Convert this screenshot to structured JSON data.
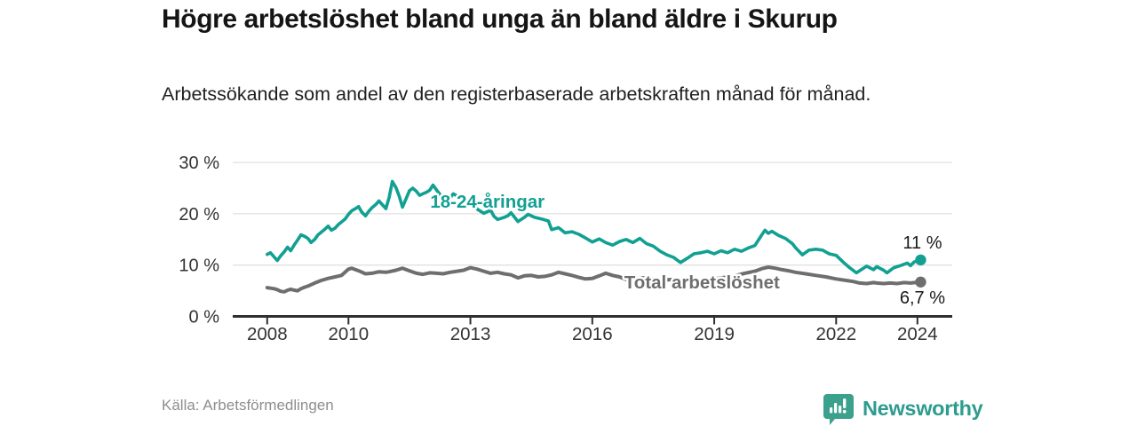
{
  "header": {
    "title": "Högre arbetslöshet bland unga än bland äldre i Skurup",
    "subtitle": "Arbetssökande som andel av den registerbaserade arbetskraften månad för månad."
  },
  "footer": {
    "source": "Källa: Arbetsförmedlingen",
    "brand": "Newsworthy"
  },
  "colors": {
    "young_line": "#11a092",
    "total_line": "#6e6e6e",
    "axis": "#2f2f2f",
    "grid": "#e0e0e0",
    "tick_label": "#333333",
    "value_label": "#1a1a1a",
    "brand_teal": "#2d9c8e",
    "brand_icon_bg": "#3ba18d"
  },
  "chart_data": {
    "type": "line",
    "title": "Högre arbetslöshet bland unga än bland äldre i Skurup",
    "subtitle": "Arbetssökande som andel av den registerbaserade arbetskraften månad för månad.",
    "unit": "%",
    "x_unit": "decimal year (monthly data)",
    "ylim": [
      0,
      30
    ],
    "grid": "horizontal",
    "legend": "inline-labels",
    "yticks": [
      {
        "value": 0,
        "label": "0 %"
      },
      {
        "value": 10,
        "label": "10 %"
      },
      {
        "value": 20,
        "label": "20 %"
      },
      {
        "value": 30,
        "label": "30 %"
      }
    ],
    "xticks": [
      {
        "value": 2008,
        "label": "2008"
      },
      {
        "value": 2010,
        "label": "2010"
      },
      {
        "value": 2013,
        "label": "2013"
      },
      {
        "value": 2016,
        "label": "2016"
      },
      {
        "value": 2019,
        "label": "2019"
      },
      {
        "value": 2022,
        "label": "2022"
      },
      {
        "value": 2024,
        "label": "2024"
      }
    ],
    "series": [
      {
        "name": "Total arbetslöshet",
        "color": "#6e6e6e",
        "width": 4,
        "inline_label": {
          "x": 2018.7,
          "y": 6.7
        },
        "end_label": {
          "text": "6,7 %",
          "dy": 24
        },
        "end_dot": true,
        "points": [
          [
            2008.0,
            5.6
          ],
          [
            2008.08,
            5.5
          ],
          [
            2008.17,
            5.4
          ],
          [
            2008.25,
            5.2
          ],
          [
            2008.33,
            4.9
          ],
          [
            2008.42,
            4.8
          ],
          [
            2008.5,
            5.1
          ],
          [
            2008.58,
            5.3
          ],
          [
            2008.67,
            5.1
          ],
          [
            2008.75,
            5.0
          ],
          [
            2008.83,
            5.4
          ],
          [
            2008.92,
            5.7
          ],
          [
            2009.0,
            5.9
          ],
          [
            2009.17,
            6.5
          ],
          [
            2009.33,
            7.0
          ],
          [
            2009.5,
            7.4
          ],
          [
            2009.67,
            7.7
          ],
          [
            2009.83,
            8.0
          ],
          [
            2010.0,
            9.2
          ],
          [
            2010.08,
            9.4
          ],
          [
            2010.25,
            8.9
          ],
          [
            2010.42,
            8.3
          ],
          [
            2010.58,
            8.4
          ],
          [
            2010.75,
            8.7
          ],
          [
            2010.92,
            8.6
          ],
          [
            2011.0,
            8.7
          ],
          [
            2011.17,
            9.0
          ],
          [
            2011.33,
            9.4
          ],
          [
            2011.5,
            8.9
          ],
          [
            2011.67,
            8.4
          ],
          [
            2011.83,
            8.2
          ],
          [
            2012.0,
            8.5
          ],
          [
            2012.17,
            8.4
          ],
          [
            2012.33,
            8.3
          ],
          [
            2012.5,
            8.6
          ],
          [
            2012.67,
            8.8
          ],
          [
            2012.83,
            9.0
          ],
          [
            2013.0,
            9.5
          ],
          [
            2013.17,
            9.2
          ],
          [
            2013.33,
            8.8
          ],
          [
            2013.5,
            8.4
          ],
          [
            2013.67,
            8.6
          ],
          [
            2013.83,
            8.3
          ],
          [
            2014.0,
            8.1
          ],
          [
            2014.17,
            7.5
          ],
          [
            2014.33,
            7.9
          ],
          [
            2014.5,
            8.0
          ],
          [
            2014.67,
            7.7
          ],
          [
            2014.83,
            7.8
          ],
          [
            2015.0,
            8.1
          ],
          [
            2015.17,
            8.6
          ],
          [
            2015.33,
            8.3
          ],
          [
            2015.5,
            8.0
          ],
          [
            2015.67,
            7.6
          ],
          [
            2015.83,
            7.3
          ],
          [
            2016.0,
            7.4
          ],
          [
            2016.17,
            7.9
          ],
          [
            2016.33,
            8.4
          ],
          [
            2016.5,
            8.0
          ],
          [
            2016.67,
            7.7
          ],
          [
            2016.83,
            7.2
          ],
          [
            2017.0,
            7.3
          ],
          [
            2017.25,
            7.5
          ],
          [
            2017.5,
            7.3
          ],
          [
            2017.75,
            7.1
          ],
          [
            2018.0,
            7.2
          ],
          [
            2018.25,
            7.0
          ],
          [
            2018.5,
            6.9
          ],
          [
            2018.75,
            7.1
          ],
          [
            2019.0,
            7.3
          ],
          [
            2019.25,
            7.6
          ],
          [
            2019.5,
            7.9
          ],
          [
            2019.75,
            8.4
          ],
          [
            2020.0,
            8.8
          ],
          [
            2020.17,
            9.3
          ],
          [
            2020.33,
            9.6
          ],
          [
            2020.5,
            9.4
          ],
          [
            2020.67,
            9.1
          ],
          [
            2020.83,
            8.9
          ],
          [
            2021.0,
            8.6
          ],
          [
            2021.25,
            8.3
          ],
          [
            2021.5,
            8.0
          ],
          [
            2021.75,
            7.7
          ],
          [
            2022.0,
            7.3
          ],
          [
            2022.25,
            7.0
          ],
          [
            2022.42,
            6.8
          ],
          [
            2022.58,
            6.5
          ],
          [
            2022.75,
            6.4
          ],
          [
            2022.92,
            6.6
          ],
          [
            2023.0,
            6.5
          ],
          [
            2023.17,
            6.4
          ],
          [
            2023.33,
            6.5
          ],
          [
            2023.5,
            6.4
          ],
          [
            2023.67,
            6.6
          ],
          [
            2023.83,
            6.5
          ],
          [
            2024.08,
            6.7
          ]
        ]
      },
      {
        "name": "18-24-åringar",
        "color": "#11a092",
        "width": 3.6,
        "inline_label": {
          "x": 2013.42,
          "y": 22.4
        },
        "end_label": {
          "text": "11 %",
          "dy": -13
        },
        "end_dot": true,
        "points": [
          [
            2008.0,
            12.1
          ],
          [
            2008.08,
            12.4
          ],
          [
            2008.17,
            11.6
          ],
          [
            2008.25,
            10.9
          ],
          [
            2008.33,
            11.8
          ],
          [
            2008.42,
            12.6
          ],
          [
            2008.5,
            13.5
          ],
          [
            2008.58,
            12.8
          ],
          [
            2008.67,
            14.0
          ],
          [
            2008.75,
            14.9
          ],
          [
            2008.83,
            15.9
          ],
          [
            2008.92,
            15.6
          ],
          [
            2009.0,
            15.2
          ],
          [
            2009.08,
            14.4
          ],
          [
            2009.17,
            15.0
          ],
          [
            2009.25,
            15.9
          ],
          [
            2009.33,
            16.4
          ],
          [
            2009.42,
            17.0
          ],
          [
            2009.5,
            17.6
          ],
          [
            2009.58,
            16.8
          ],
          [
            2009.67,
            17.2
          ],
          [
            2009.75,
            17.9
          ],
          [
            2009.83,
            18.4
          ],
          [
            2009.92,
            19.0
          ],
          [
            2010.0,
            19.9
          ],
          [
            2010.08,
            20.6
          ],
          [
            2010.17,
            21.0
          ],
          [
            2010.25,
            21.4
          ],
          [
            2010.33,
            20.3
          ],
          [
            2010.42,
            19.6
          ],
          [
            2010.5,
            20.5
          ],
          [
            2010.58,
            21.2
          ],
          [
            2010.67,
            21.8
          ],
          [
            2010.75,
            22.5
          ],
          [
            2010.83,
            21.8
          ],
          [
            2010.92,
            21.0
          ],
          [
            2011.0,
            23.2
          ],
          [
            2011.08,
            26.3
          ],
          [
            2011.17,
            25.1
          ],
          [
            2011.25,
            23.4
          ],
          [
            2011.33,
            21.3
          ],
          [
            2011.42,
            23.0
          ],
          [
            2011.5,
            24.5
          ],
          [
            2011.58,
            25.0
          ],
          [
            2011.67,
            24.4
          ],
          [
            2011.75,
            23.6
          ],
          [
            2011.83,
            23.9
          ],
          [
            2011.92,
            24.2
          ],
          [
            2012.0,
            24.6
          ],
          [
            2012.08,
            25.6
          ],
          [
            2012.17,
            24.6
          ],
          [
            2012.25,
            23.8
          ],
          [
            2012.33,
            22.1
          ],
          [
            2012.42,
            21.3
          ],
          [
            2012.5,
            23.1
          ],
          [
            2012.58,
            23.9
          ],
          [
            2012.67,
            23.5
          ],
          [
            2012.75,
            23.1
          ],
          [
            2012.83,
            23.3
          ],
          [
            2012.92,
            22.8
          ],
          [
            2013.0,
            22.2
          ],
          [
            2013.17,
            20.9
          ],
          [
            2013.33,
            20.1
          ],
          [
            2013.5,
            20.7
          ],
          [
            2013.58,
            19.5
          ],
          [
            2013.67,
            18.9
          ],
          [
            2013.83,
            19.3
          ],
          [
            2013.92,
            19.6
          ],
          [
            2014.0,
            20.2
          ],
          [
            2014.17,
            18.5
          ],
          [
            2014.33,
            19.3
          ],
          [
            2014.42,
            19.9
          ],
          [
            2014.58,
            19.3
          ],
          [
            2014.75,
            19.0
          ],
          [
            2014.92,
            18.6
          ],
          [
            2015.0,
            16.9
          ],
          [
            2015.17,
            17.3
          ],
          [
            2015.33,
            16.3
          ],
          [
            2015.5,
            16.5
          ],
          [
            2015.67,
            16.0
          ],
          [
            2015.83,
            15.3
          ],
          [
            2016.0,
            14.5
          ],
          [
            2016.17,
            15.1
          ],
          [
            2016.33,
            14.4
          ],
          [
            2016.5,
            13.9
          ],
          [
            2016.67,
            14.6
          ],
          [
            2016.83,
            15.0
          ],
          [
            2017.0,
            14.4
          ],
          [
            2017.17,
            15.2
          ],
          [
            2017.33,
            14.2
          ],
          [
            2017.5,
            13.7
          ],
          [
            2017.67,
            12.7
          ],
          [
            2017.83,
            12.0
          ],
          [
            2018.0,
            11.5
          ],
          [
            2018.17,
            10.5
          ],
          [
            2018.33,
            11.3
          ],
          [
            2018.5,
            12.2
          ],
          [
            2018.67,
            12.4
          ],
          [
            2018.83,
            12.7
          ],
          [
            2019.0,
            12.2
          ],
          [
            2019.17,
            12.8
          ],
          [
            2019.33,
            12.4
          ],
          [
            2019.5,
            13.1
          ],
          [
            2019.67,
            12.7
          ],
          [
            2019.83,
            13.3
          ],
          [
            2020.0,
            13.8
          ],
          [
            2020.17,
            15.9
          ],
          [
            2020.25,
            16.8
          ],
          [
            2020.33,
            16.2
          ],
          [
            2020.42,
            16.6
          ],
          [
            2020.58,
            15.8
          ],
          [
            2020.75,
            15.2
          ],
          [
            2020.92,
            14.2
          ],
          [
            2021.0,
            13.4
          ],
          [
            2021.17,
            12.0
          ],
          [
            2021.33,
            12.9
          ],
          [
            2021.5,
            13.1
          ],
          [
            2021.67,
            12.9
          ],
          [
            2021.83,
            12.2
          ],
          [
            2022.0,
            11.9
          ],
          [
            2022.17,
            10.6
          ],
          [
            2022.33,
            9.5
          ],
          [
            2022.5,
            8.5
          ],
          [
            2022.67,
            9.4
          ],
          [
            2022.75,
            9.8
          ],
          [
            2022.92,
            9.1
          ],
          [
            2023.0,
            9.7
          ],
          [
            2023.17,
            9.0
          ],
          [
            2023.25,
            8.5
          ],
          [
            2023.42,
            9.5
          ],
          [
            2023.58,
            9.9
          ],
          [
            2023.75,
            10.4
          ],
          [
            2023.83,
            9.9
          ],
          [
            2023.92,
            10.6
          ],
          [
            2024.08,
            11.0
          ]
        ]
      }
    ]
  }
}
